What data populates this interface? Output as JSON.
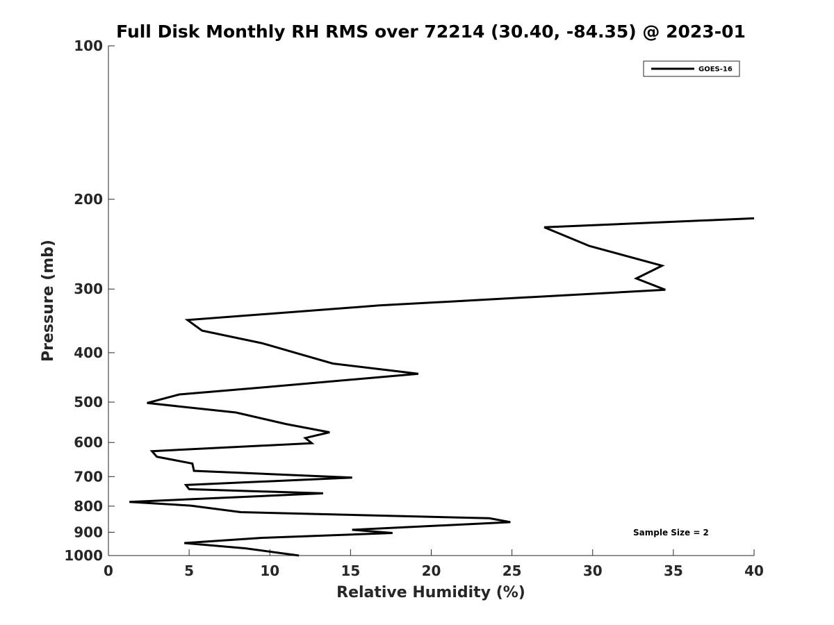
{
  "chart_data": {
    "type": "line",
    "title": "Full Disk Monthly RH RMS over 72214 (30.40, -84.35) @ 2023-01",
    "xlabel": "Relative Humidity (%)",
    "ylabel": "Pressure (mb)",
    "xlim": [
      0,
      40
    ],
    "ylim": [
      100,
      1000
    ],
    "yscale": "log",
    "y_reversed": true,
    "xticks": [
      0,
      5,
      10,
      15,
      20,
      25,
      30,
      35,
      40
    ],
    "xtick_labels": [
      "0",
      "5",
      "10",
      "15",
      "20",
      "25",
      "30",
      "35",
      "40"
    ],
    "yticks": [
      100,
      200,
      300,
      400,
      500,
      600,
      700,
      800,
      900,
      1000
    ],
    "ytick_labels": [
      "100",
      "200",
      "300",
      "400",
      "500",
      "600",
      "700",
      "800",
      "900",
      "1000"
    ],
    "grid": false,
    "legend": {
      "location": "top-right",
      "entries": [
        "GOES-16"
      ]
    },
    "annotation": "Sample Size = 2",
    "series": [
      {
        "name": "GOES-16",
        "color": "#000000",
        "x": [
          40.0,
          27.0,
          29.8,
          34.3,
          32.7,
          34.5,
          16.8,
          4.9,
          5.8,
          9.5,
          13.9,
          19.2,
          9.5,
          4.4,
          2.4,
          7.9,
          11.0,
          13.7,
          12.2,
          12.6,
          2.7,
          3.0,
          5.2,
          5.3,
          15.1,
          4.8,
          5.0,
          13.3,
          1.3,
          5.1,
          8.2,
          23.6,
          24.9,
          15.1,
          17.6,
          9.5,
          4.7,
          8.5,
          11.8
        ],
        "y": [
          218,
          227,
          247,
          270,
          286,
          301,
          323,
          345,
          362,
          383,
          420,
          440,
          468,
          483,
          502,
          524,
          552,
          573,
          588,
          602,
          624,
          640,
          660,
          682,
          703,
          727,
          741,
          755,
          785,
          798,
          822,
          845,
          860,
          890,
          903,
          923,
          945,
          968,
          1000
        ]
      }
    ]
  }
}
